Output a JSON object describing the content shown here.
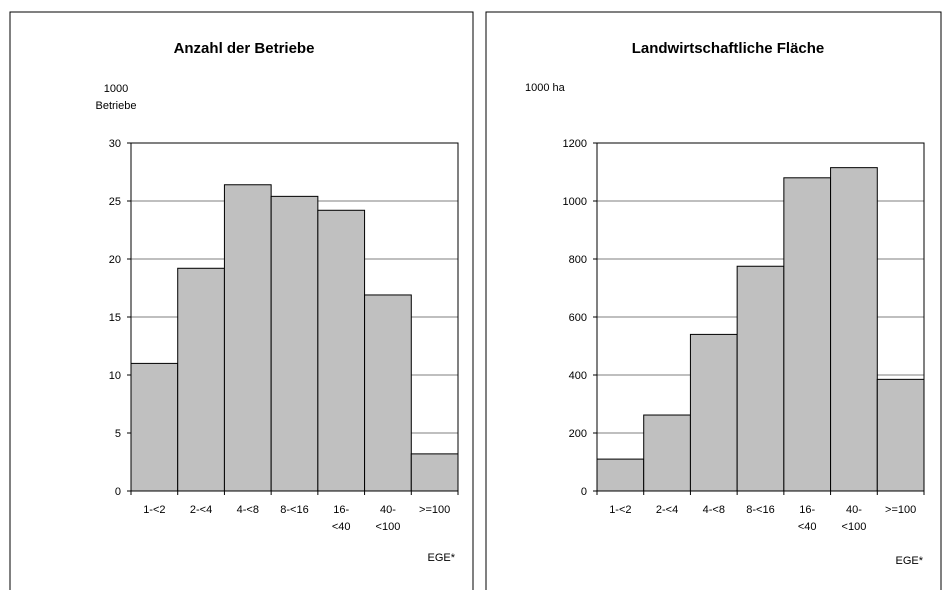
{
  "chart_data": [
    {
      "type": "bar",
      "title": "Anzahl der Betriebe",
      "ylabel": [
        "1000",
        "Betriebe"
      ],
      "xlabel": "EGE*",
      "categories": [
        [
          "1-<2"
        ],
        [
          "2-<4"
        ],
        [
          "4-<8"
        ],
        [
          "8-<16"
        ],
        [
          "16-",
          "<40"
        ],
        [
          "40-",
          "<100"
        ],
        [
          ">=100"
        ]
      ],
      "values": [
        11,
        19.2,
        26.4,
        25.4,
        24.2,
        16.9,
        3.2
      ],
      "ylim": [
        0,
        30
      ],
      "yticks": [
        0,
        5,
        10,
        15,
        20,
        25,
        30
      ],
      "grid": true
    },
    {
      "type": "bar",
      "title": "Landwirtschaftliche Fläche",
      "ylabel": [
        "1000 ha"
      ],
      "xlabel": "EGE*",
      "categories": [
        [
          "1-<2"
        ],
        [
          "2-<4"
        ],
        [
          "4-<8"
        ],
        [
          "8-<16"
        ],
        [
          "16-",
          "<40"
        ],
        [
          "40-",
          "<100"
        ],
        [
          ">=100"
        ]
      ],
      "values": [
        110,
        262,
        540,
        775,
        1080,
        1115,
        385
      ],
      "ylim": [
        0,
        1200
      ],
      "yticks": [
        0,
        200,
        400,
        600,
        800,
        1000,
        1200
      ],
      "grid": true
    }
  ]
}
